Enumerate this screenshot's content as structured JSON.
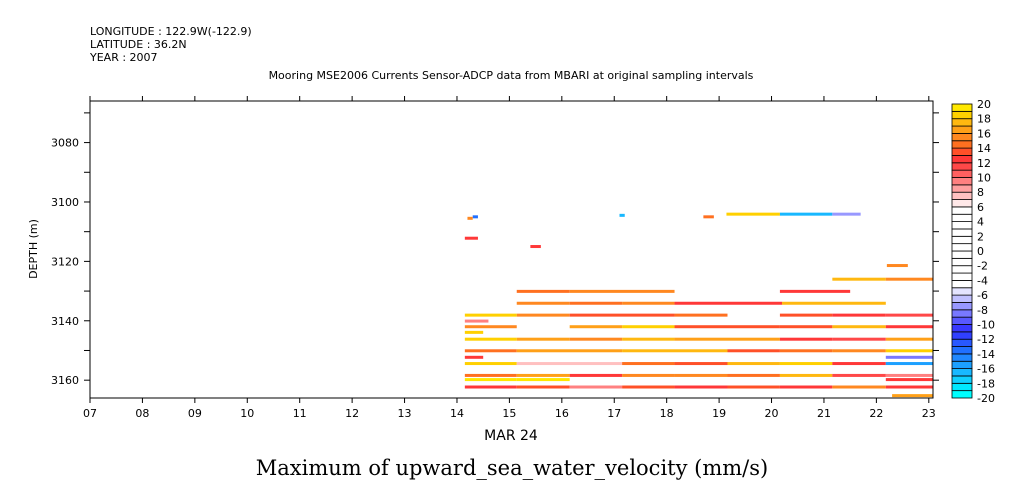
{
  "header": {
    "longitude": "LONGITUDE : 122.9W(-122.9)",
    "latitude": "LATITUDE : 36.2N",
    "year": "YEAR : 2007"
  },
  "chart_data": {
    "type": "heatmap",
    "title": "Mooring MSE2006 Currents Sensor-ADCP data from MBARI at original sampling intervals",
    "xlabel": "MAR 24",
    "ylabel": "DEPTH (m)",
    "bottom_title": "Maximum of upward_sea_water_velocity (mm/s)",
    "xlim": [
      7,
      23.08
    ],
    "ylim": [
      3066,
      3166
    ],
    "y_inverted": true,
    "x_ticks": [
      7,
      8,
      9,
      10,
      11,
      12,
      13,
      14,
      15,
      16,
      17,
      18,
      19,
      20,
      21,
      22,
      23
    ],
    "x_tick_labels": [
      "07",
      "08",
      "09",
      "10",
      "11",
      "12",
      "13",
      "14",
      "15",
      "16",
      "17",
      "18",
      "19",
      "20",
      "21",
      "22",
      "23"
    ],
    "y_ticks": [
      3080,
      3100,
      3120,
      3140,
      3160
    ],
    "y_tick_labels": [
      "3080",
      "3100",
      "3120",
      "3140",
      "3160"
    ],
    "colorbar": {
      "min": -20,
      "max": 20,
      "step": 1,
      "labels": [
        "20",
        "18",
        "16",
        "14",
        "12",
        "10",
        "8",
        "6",
        "4",
        "2",
        "0",
        "-2",
        "-4",
        "-6",
        "-8",
        "-10",
        "-12",
        "-14",
        "-16",
        "-18",
        "-20"
      ],
      "colors": [
        "#00ffff",
        "#00e8ff",
        "#10d0ff",
        "#18b8ff",
        "#1ca0ff",
        "#2088ff",
        "#2070ff",
        "#2858ff",
        "#3040ff",
        "#3838ff",
        "#5858ff",
        "#7878ff",
        "#9898ff",
        "#c0c0ff",
        "#e4e4ff",
        "#ffffff",
        "#ffffff",
        "#ffffff",
        "#ffffff",
        "#ffffff",
        "#ffffff",
        "#ffffff",
        "#ffffff",
        "#ffffff",
        "#ffffff",
        "#ffffff",
        "#ffe8e8",
        "#ffc0c0",
        "#ffa0a0",
        "#ff8080",
        "#ff6060",
        "#ff4848",
        "#ff3838",
        "#ff5028",
        "#ff7020",
        "#ff8820",
        "#ffa018",
        "#ffb810",
        "#ffd000",
        "#ffe800"
      ]
    },
    "segments_columns": [
      "day_start",
      "day_end",
      "depth_m",
      "value_mm_s"
    ],
    "segments": [
      [
        14.3,
        14.4,
        3105,
        -14
      ],
      [
        14.2,
        14.3,
        3105.5,
        15
      ],
      [
        17.1,
        17.2,
        3104.5,
        -17
      ],
      [
        18.7,
        18.9,
        3105,
        14
      ],
      [
        19.14,
        20.16,
        3104.1,
        18
      ],
      [
        20.16,
        21.16,
        3104.1,
        -17
      ],
      [
        21.16,
        21.7,
        3104.1,
        -8
      ],
      [
        14.15,
        14.4,
        3112.2,
        12
      ],
      [
        15.4,
        15.6,
        3115,
        12
      ],
      [
        22.2,
        22.6,
        3121.4,
        15
      ],
      [
        21.16,
        22.18,
        3126,
        17
      ],
      [
        22.18,
        23.08,
        3126,
        15
      ],
      [
        15.14,
        16.15,
        3130.1,
        14
      ],
      [
        16.15,
        18.15,
        3130.1,
        15
      ],
      [
        20.16,
        21.5,
        3130.1,
        12
      ],
      [
        15.14,
        16.15,
        3134.1,
        15
      ],
      [
        16.15,
        17.15,
        3134.1,
        14
      ],
      [
        17.15,
        18.15,
        3134.1,
        15
      ],
      [
        18.15,
        20.2,
        3134.1,
        12
      ],
      [
        20.2,
        22.18,
        3134.1,
        17
      ],
      [
        14.15,
        15.14,
        3138.1,
        18
      ],
      [
        15.14,
        16.15,
        3138.1,
        15
      ],
      [
        16.15,
        18.15,
        3138.1,
        13
      ],
      [
        18.15,
        19.16,
        3138.1,
        14
      ],
      [
        20.16,
        21.16,
        3138.1,
        13
      ],
      [
        21.16,
        22.18,
        3138.1,
        12
      ],
      [
        22.18,
        23.08,
        3138.1,
        11
      ],
      [
        14.15,
        14.6,
        3140.1,
        9
      ],
      [
        14.15,
        15.14,
        3142,
        15
      ],
      [
        16.15,
        17.15,
        3142,
        16
      ],
      [
        17.15,
        18.15,
        3142,
        18
      ],
      [
        18.15,
        19.16,
        3142,
        13
      ],
      [
        19.16,
        20.16,
        3142,
        13
      ],
      [
        20.16,
        21.16,
        3142,
        13
      ],
      [
        21.16,
        22.18,
        3142,
        17
      ],
      [
        22.18,
        23.08,
        3142,
        12
      ],
      [
        14.15,
        14.5,
        3143.9,
        18
      ],
      [
        14.15,
        15.14,
        3146.2,
        18
      ],
      [
        15.14,
        16.15,
        3146.2,
        16
      ],
      [
        16.15,
        17.15,
        3146.2,
        15
      ],
      [
        17.15,
        18.15,
        3146.2,
        17
      ],
      [
        18.15,
        20.16,
        3146.2,
        16
      ],
      [
        20.16,
        21.16,
        3146.2,
        12
      ],
      [
        21.16,
        22.18,
        3146.2,
        11
      ],
      [
        22.18,
        23.08,
        3146.2,
        16
      ],
      [
        14.15,
        15.14,
        3150.1,
        14
      ],
      [
        15.14,
        17.15,
        3150.1,
        16
      ],
      [
        17.15,
        19.16,
        3150.1,
        17
      ],
      [
        19.16,
        20.16,
        3150.1,
        13
      ],
      [
        20.16,
        21.16,
        3150.1,
        14
      ],
      [
        21.16,
        22.18,
        3150.1,
        15
      ],
      [
        22.18,
        23.08,
        3150.1,
        18
      ],
      [
        14.15,
        14.5,
        3152.3,
        12
      ],
      [
        22.18,
        23.08,
        3152.3,
        -9
      ],
      [
        14.15,
        15.14,
        3154.4,
        18
      ],
      [
        15.14,
        17.15,
        3154.4,
        7
      ],
      [
        17.15,
        18.15,
        3154.4,
        14
      ],
      [
        18.15,
        19.16,
        3154.4,
        13
      ],
      [
        19.16,
        20.16,
        3154.4,
        17
      ],
      [
        20.16,
        21.16,
        3154.4,
        18
      ],
      [
        21.16,
        22.18,
        3154.4,
        12
      ],
      [
        22.18,
        23.08,
        3154.4,
        -16
      ],
      [
        14.15,
        15.14,
        3158.4,
        14
      ],
      [
        15.14,
        16.15,
        3158.4,
        16
      ],
      [
        16.15,
        17.15,
        3158.4,
        12
      ],
      [
        17.15,
        18.15,
        3158.4,
        15
      ],
      [
        18.15,
        19.16,
        3158.4,
        15
      ],
      [
        19.16,
        20.16,
        3158.4,
        14
      ],
      [
        20.16,
        21.16,
        3158.4,
        17
      ],
      [
        21.16,
        22.18,
        3158.4,
        11
      ],
      [
        22.18,
        23.08,
        3158.4,
        9
      ],
      [
        14.15,
        15.14,
        3159.8,
        20
      ],
      [
        15.14,
        16.15,
        3159.8,
        19
      ],
      [
        22.18,
        23.08,
        3159.8,
        12
      ],
      [
        14.15,
        15.14,
        3162.3,
        12
      ],
      [
        15.14,
        16.15,
        3162.3,
        13
      ],
      [
        16.15,
        17.15,
        3162.3,
        9
      ],
      [
        17.15,
        18.15,
        3162.3,
        13
      ],
      [
        18.15,
        19.16,
        3162.3,
        12
      ],
      [
        19.16,
        20.16,
        3162.3,
        13
      ],
      [
        20.16,
        21.16,
        3162.3,
        12
      ],
      [
        21.16,
        22.18,
        3162.3,
        15
      ],
      [
        22.18,
        23.08,
        3162.3,
        12
      ],
      [
        22.3,
        23.08,
        3165.2,
        16
      ]
    ]
  }
}
